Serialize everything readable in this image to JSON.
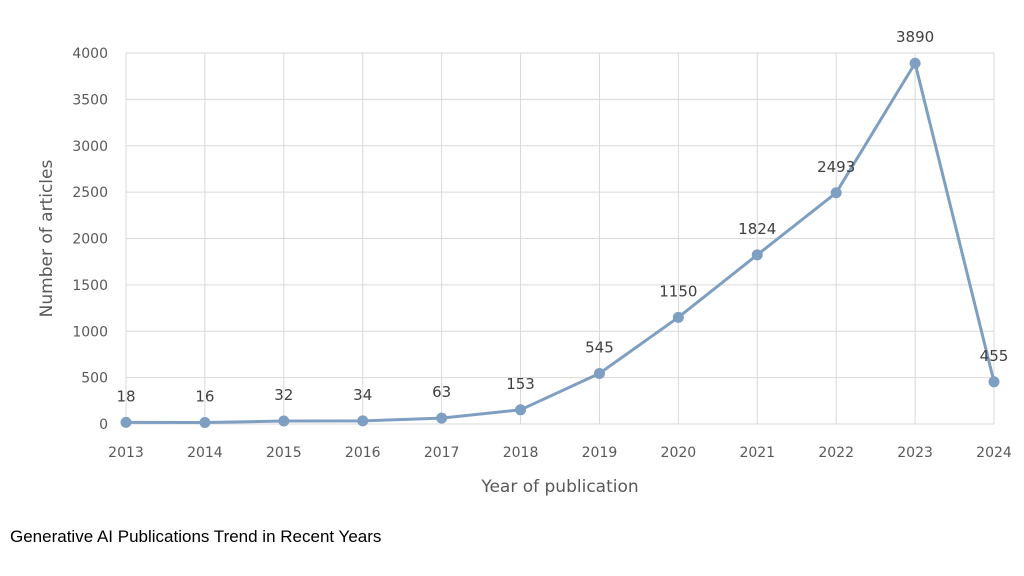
{
  "caption": "Generative AI Publications Trend in Recent Years",
  "chart_data": {
    "type": "line",
    "title": "",
    "xlabel": "Year of publication",
    "ylabel": "Number of articles",
    "categories": [
      "2013",
      "2014",
      "2015",
      "2016",
      "2017",
      "2018",
      "2019",
      "2020",
      "2021",
      "2022",
      "2023",
      "2024"
    ],
    "series": [
      {
        "values": [
          18,
          16,
          32,
          34,
          63,
          153,
          545,
          1150,
          1824,
          2493,
          3890,
          455
        ]
      }
    ],
    "data_labels": [
      "18",
      "16",
      "32",
      "34",
      "63",
      "153",
      "545",
      "1150",
      "1824",
      "2493",
      "3890",
      "455"
    ],
    "ylim": [
      0,
      4000
    ],
    "yticks": [
      "0",
      "500",
      "1000",
      "1500",
      "2000",
      "2500",
      "3000",
      "3500",
      "4000"
    ],
    "grid": true,
    "line_color": "#7f9fc2"
  }
}
